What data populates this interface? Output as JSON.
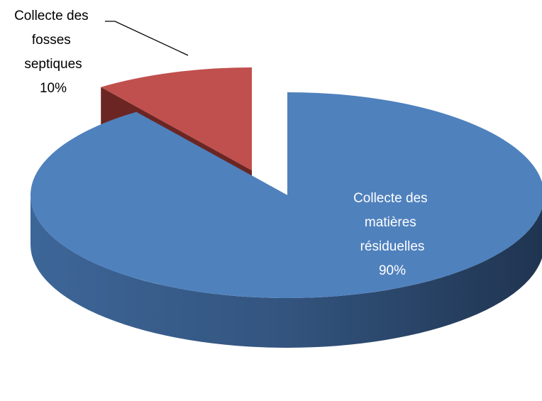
{
  "chart_data": {
    "type": "pie",
    "categories": [
      "Collecte des matières résiduelles",
      "Collecte des fosses septiques"
    ],
    "values": [
      90,
      10
    ],
    "value_labels": [
      "90%",
      "10%"
    ],
    "colors": [
      "#4f81bd",
      "#c0504d"
    ],
    "three_d": true
  }
}
